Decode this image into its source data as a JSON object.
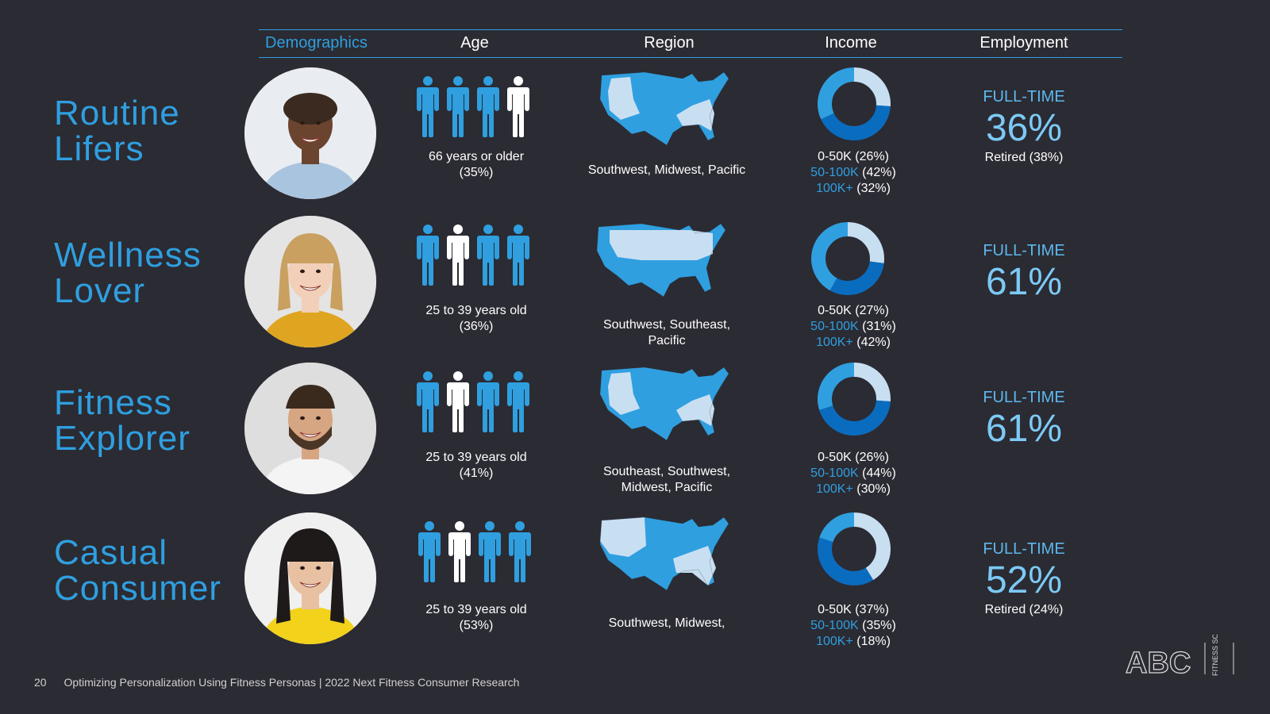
{
  "header": {
    "demographics": "Demographics",
    "age": "Age",
    "region": "Region",
    "income": "Income",
    "employment": "Employment"
  },
  "colors": {
    "accent": "#2f9fe0",
    "dark_blue": "#0a6cbf",
    "light_blue": "#c8dff2",
    "background": "#2b2b33"
  },
  "personas": [
    {
      "name_line1": "Routine",
      "name_line2": "Lifers",
      "photo": "older-man-portrait",
      "highlighted_figure": 3,
      "age_text": "66 years or older (35%)",
      "region_text": "Southwest, Midwest, Pacific",
      "income": {
        "a_label": "0-50K",
        "a_pct": "(26%)",
        "a_val": 26,
        "b_label": "50-100K",
        "b_pct": "(42%)",
        "b_val": 42,
        "c_label": "100K+",
        "c_pct": "(32%)",
        "c_val": 32
      },
      "employment": {
        "label": "FULL-TIME",
        "pct": "36%",
        "retired": "Retired (38%)"
      }
    },
    {
      "name_line1": "Wellness",
      "name_line2": "Lover",
      "photo": "blonde-woman-portrait",
      "highlighted_figure": 1,
      "age_text": "25 to 39 years old (36%)",
      "region_text": "Southwest, Southeast, Pacific",
      "income": {
        "a_label": "0-50K",
        "a_pct": "(27%)",
        "a_val": 27,
        "b_label": "50-100K",
        "b_pct": "(31%)",
        "b_val": 31,
        "c_label": "100K+",
        "c_pct": "(42%)",
        "c_val": 42
      },
      "employment": {
        "label": "FULL-TIME",
        "pct": "61%",
        "retired": ""
      }
    },
    {
      "name_line1": "Fitness",
      "name_line2": "Explorer",
      "photo": "bearded-man-portrait",
      "highlighted_figure": 1,
      "age_text": "25 to 39 years old (41%)",
      "region_text": "Southeast, Southwest, Midwest, Pacific",
      "income": {
        "a_label": "0-50K",
        "a_pct": "(26%)",
        "a_val": 26,
        "b_label": "50-100K",
        "b_pct": "(44%)",
        "b_val": 44,
        "c_label": "100K+",
        "c_pct": "(30%)",
        "c_val": 30
      },
      "employment": {
        "label": "FULL-TIME",
        "pct": "61%",
        "retired": ""
      }
    },
    {
      "name_line1": "Casual",
      "name_line2": "Consumer",
      "photo": "dark-haired-woman-portrait",
      "highlighted_figure": 1,
      "age_text": "25 to 39 years old (53%)",
      "region_text": "Southwest, Midwest,",
      "income": {
        "a_label": "0-50K",
        "a_pct": "(37%)",
        "a_val": 37,
        "b_label": "50-100K",
        "b_pct": "(35%)",
        "b_val": 35,
        "c_label": "100K+",
        "c_pct": "(18%)",
        "c_val": 18
      },
      "employment": {
        "label": "FULL-TIME",
        "pct": "52%",
        "retired": "Retired (24%)"
      }
    }
  ],
  "footer": {
    "page_number": "20",
    "title": "Optimizing Personalization Using Fitness Personas |  2022 Next Fitness Consumer Research"
  },
  "logo": {
    "name": "abc-fitness-solutions-logo",
    "text": "ABC",
    "sub": "FITNESS SOLUTIONS"
  }
}
